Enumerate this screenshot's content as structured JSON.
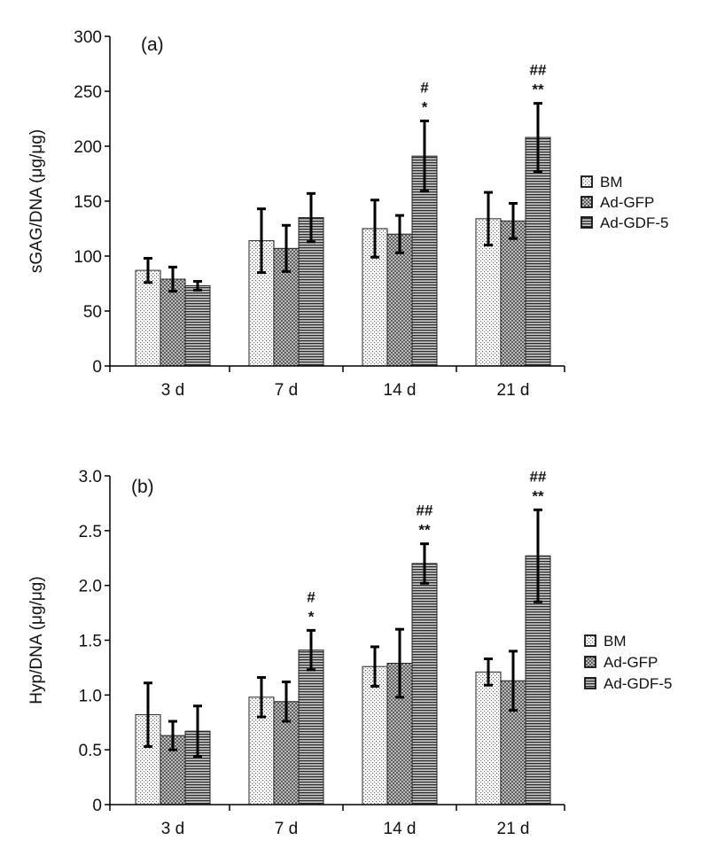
{
  "chart_data": [
    {
      "type": "bar",
      "panel_label": "(a)",
      "categories": [
        "3 d",
        "7 d",
        "14 d",
        "21 d"
      ],
      "ylabel": "sGAG/DNA (μg/μg)",
      "ylim": [
        0,
        300
      ],
      "yticks": [
        "0",
        "50",
        "100",
        "150",
        "200",
        "250",
        "300"
      ],
      "legend_position": "right",
      "series": [
        {
          "name": "BM",
          "pattern": "dots",
          "values": [
            87,
            114,
            125,
            134
          ],
          "errors": [
            11,
            29,
            26,
            24
          ]
        },
        {
          "name": "Ad-GFP",
          "pattern": "crosshatch",
          "values": [
            79,
            107,
            120,
            132
          ],
          "errors": [
            11,
            21,
            17,
            16
          ]
        },
        {
          "name": "Ad-GDF-5",
          "pattern": "horizontal-lines",
          "values": [
            73,
            135,
            191,
            208
          ],
          "errors": [
            4,
            22,
            32,
            31
          ]
        }
      ],
      "annotations": [
        {
          "category": "14 d",
          "series": "Ad-GDF-5",
          "lines": [
            "#",
            "*"
          ]
        },
        {
          "category": "21 d",
          "series": "Ad-GDF-5",
          "lines": [
            "##",
            "**"
          ]
        }
      ]
    },
    {
      "type": "bar",
      "panel_label": "(b)",
      "categories": [
        "3 d",
        "7 d",
        "14 d",
        "21 d"
      ],
      "ylabel": "Hyp/DNA (μg/μg)",
      "ylim": [
        0,
        3.0
      ],
      "yticks": [
        "0",
        "0.5",
        "1.0",
        "1.5",
        "2.0",
        "2.5",
        "3.0"
      ],
      "legend_position": "right",
      "series": [
        {
          "name": "BM",
          "pattern": "dots",
          "values": [
            0.82,
            0.98,
            1.26,
            1.21
          ],
          "errors": [
            0.29,
            0.18,
            0.18,
            0.12
          ]
        },
        {
          "name": "Ad-GFP",
          "pattern": "crosshatch",
          "values": [
            0.63,
            0.94,
            1.29,
            1.13
          ],
          "errors": [
            0.13,
            0.18,
            0.31,
            0.27
          ]
        },
        {
          "name": "Ad-GDF-5",
          "pattern": "horizontal-lines",
          "values": [
            0.67,
            1.41,
            2.2,
            2.27
          ],
          "errors": [
            0.23,
            0.18,
            0.18,
            0.42
          ]
        }
      ],
      "annotations": [
        {
          "category": "7 d",
          "series": "Ad-GDF-5",
          "lines": [
            "#",
            "*"
          ]
        },
        {
          "category": "14 d",
          "series": "Ad-GDF-5",
          "lines": [
            "##",
            "**"
          ]
        },
        {
          "category": "21 d",
          "series": "Ad-GDF-5",
          "lines": [
            "##",
            "**"
          ]
        }
      ]
    }
  ]
}
